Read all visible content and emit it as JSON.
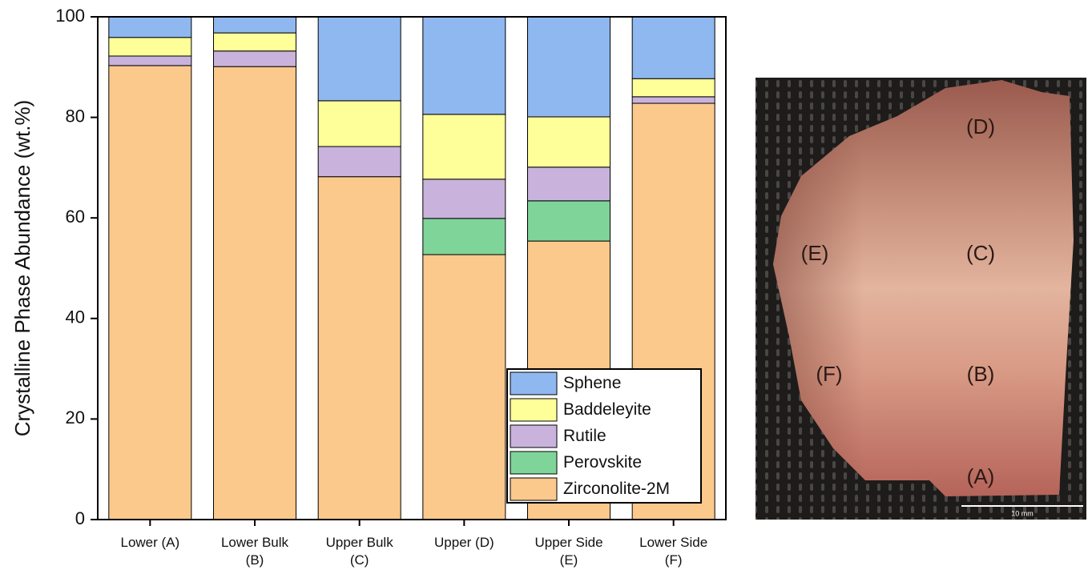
{
  "chart_data": {
    "type": "stacked_bar",
    "y_label": "Crystalline Phase Abundance (wt.%)",
    "categories": [
      "Lower (A)",
      "Lower Bulk\n(B)",
      "Upper Bulk\n(C)",
      "Upper (D)",
      "Upper Side\n(E)",
      "Lower Side\n(F)"
    ],
    "series": [
      {
        "name": "Zirconolite-2M",
        "color": "#fcc98c",
        "values": [
          90.3,
          90.1,
          68.2,
          52.7,
          55.4,
          82.8
        ]
      },
      {
        "name": "Perovskite",
        "color": "#7fd49a",
        "values": [
          0,
          0,
          0,
          7.2,
          8.0,
          0
        ]
      },
      {
        "name": "Rutile",
        "color": "#c9b3dc",
        "values": [
          1.9,
          3.1,
          6.0,
          7.8,
          6.7,
          1.3
        ]
      },
      {
        "name": "Baddeleyite",
        "color": "#ffff99",
        "values": [
          3.7,
          3.6,
          9.1,
          12.9,
          10.0,
          3.6
        ]
      },
      {
        "name": "Sphene",
        "color": "#8fb8f0",
        "values": [
          4.1,
          3.2,
          16.7,
          19.4,
          19.9,
          12.3
        ]
      }
    ],
    "ylim": [
      0,
      100
    ],
    "yticks": [
      0,
      20,
      40,
      60,
      80,
      100
    ],
    "grid": false,
    "legend": "lower right"
  },
  "photo": {
    "labels": [
      "(D)",
      "(E)",
      "(C)",
      "(F)",
      "(B)",
      "(A)"
    ],
    "scale_bar": "10 mm"
  }
}
